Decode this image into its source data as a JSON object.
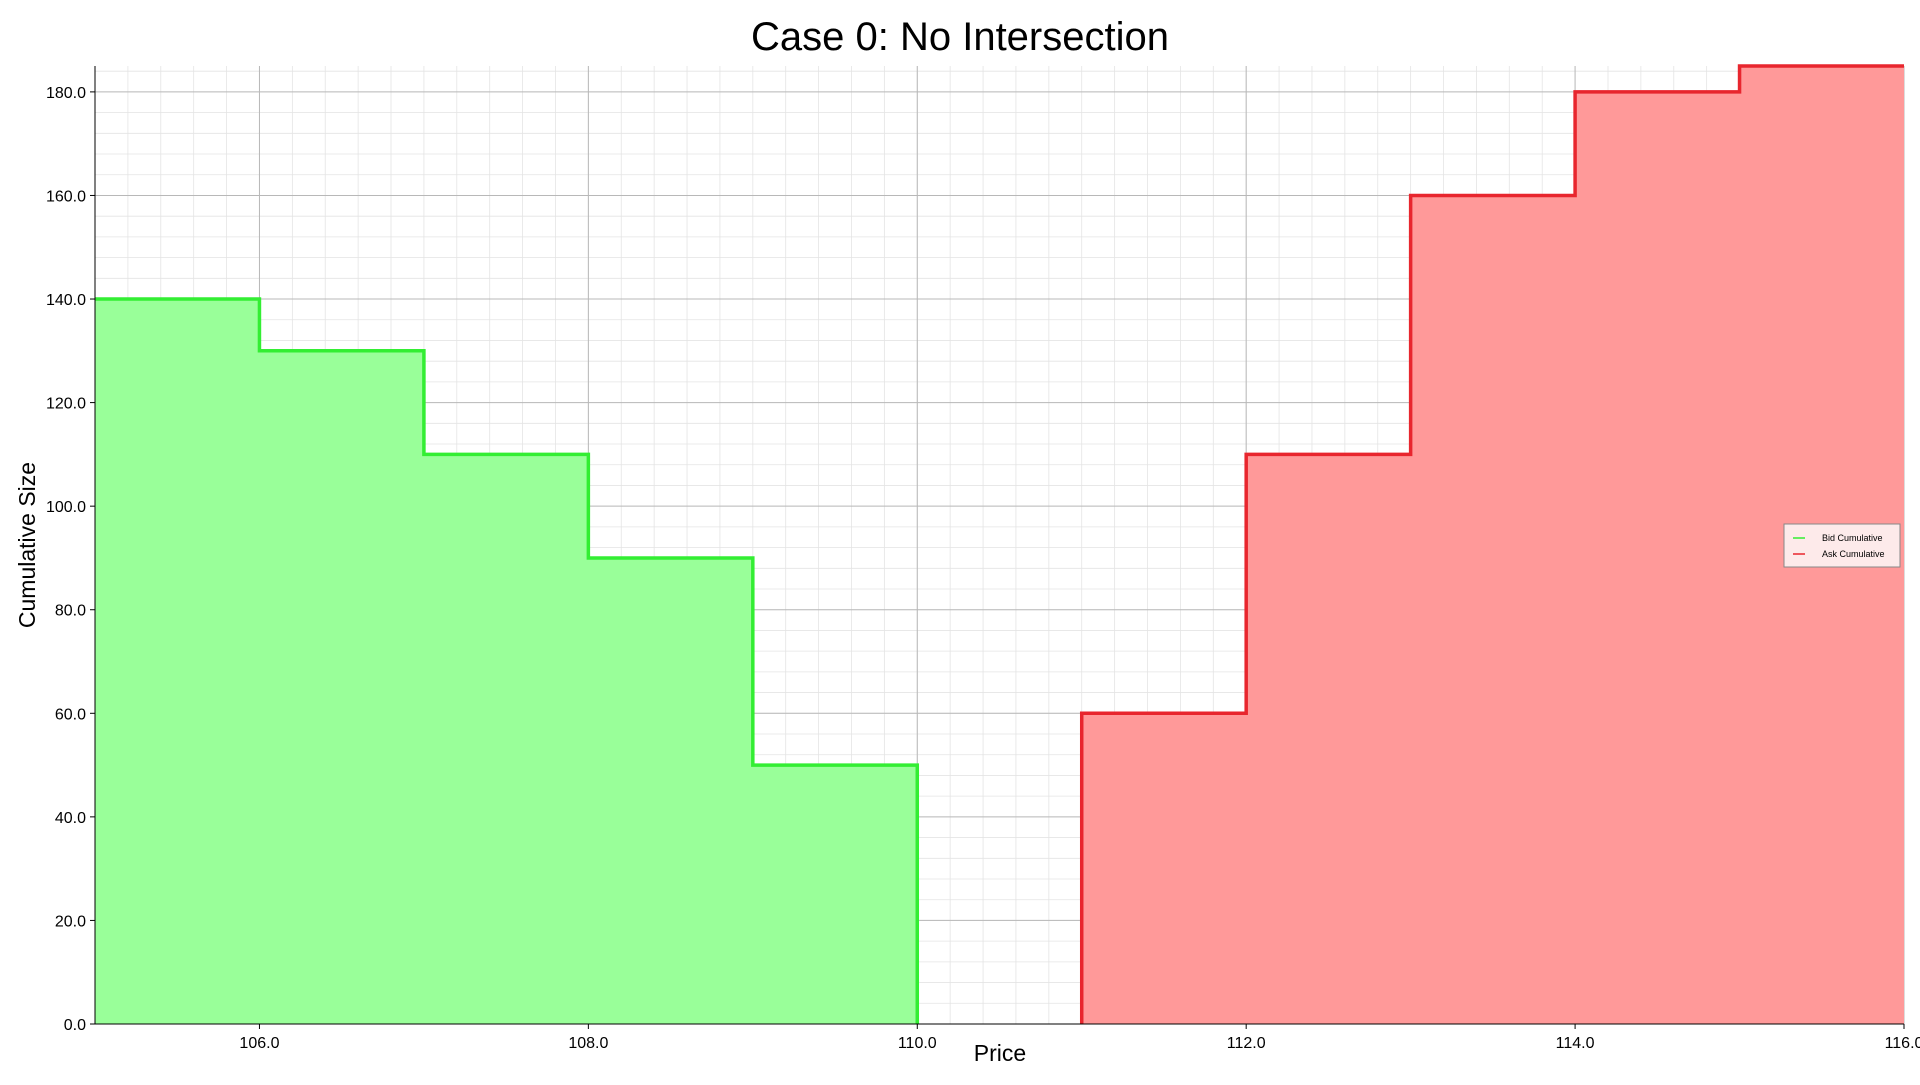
{
  "chart_data": {
    "type": "area",
    "title": "Case 0: No Intersection",
    "xlabel": "Price",
    "ylabel": "Cumulative Size",
    "xlim": [
      105.0,
      116.0
    ],
    "ylim": [
      0.0,
      185.0
    ],
    "xticks": [
      106.0,
      108.0,
      110.0,
      112.0,
      114.0,
      116.0
    ],
    "xtick_labels": [
      "106.0",
      "108.0",
      "110.0",
      "112.0",
      "114.0",
      "116.0"
    ],
    "yticks": [
      0.0,
      20.0,
      40.0,
      60.0,
      80.0,
      100.0,
      120.0,
      140.0,
      160.0,
      180.0
    ],
    "ytick_labels": [
      "0.0",
      "20.0",
      "40.0",
      "60.0",
      "80.0",
      "100.0",
      "120.0",
      "140.0",
      "160.0",
      "180.0"
    ],
    "grid": true,
    "minor_grid": true,
    "legend_position": "right",
    "series": [
      {
        "name": "Bid Cumulative",
        "color": "#33ee33",
        "fill_color": "#99ff99",
        "step": "descending",
        "x": [
          105.0,
          106.0,
          107.0,
          108.0,
          109.0,
          110.0
        ],
        "y": [
          140.0,
          130.0,
          110.0,
          90.0,
          50.0,
          0.0
        ]
      },
      {
        "name": "Ask Cumulative",
        "color": "#e8262e",
        "fill_color": "#ff9999",
        "step": "ascending",
        "x": [
          111.0,
          112.0,
          113.0,
          114.0,
          115.0,
          116.0
        ],
        "y": [
          60.0,
          110.0,
          160.0,
          180.0,
          185.0,
          185.0
        ]
      }
    ]
  }
}
